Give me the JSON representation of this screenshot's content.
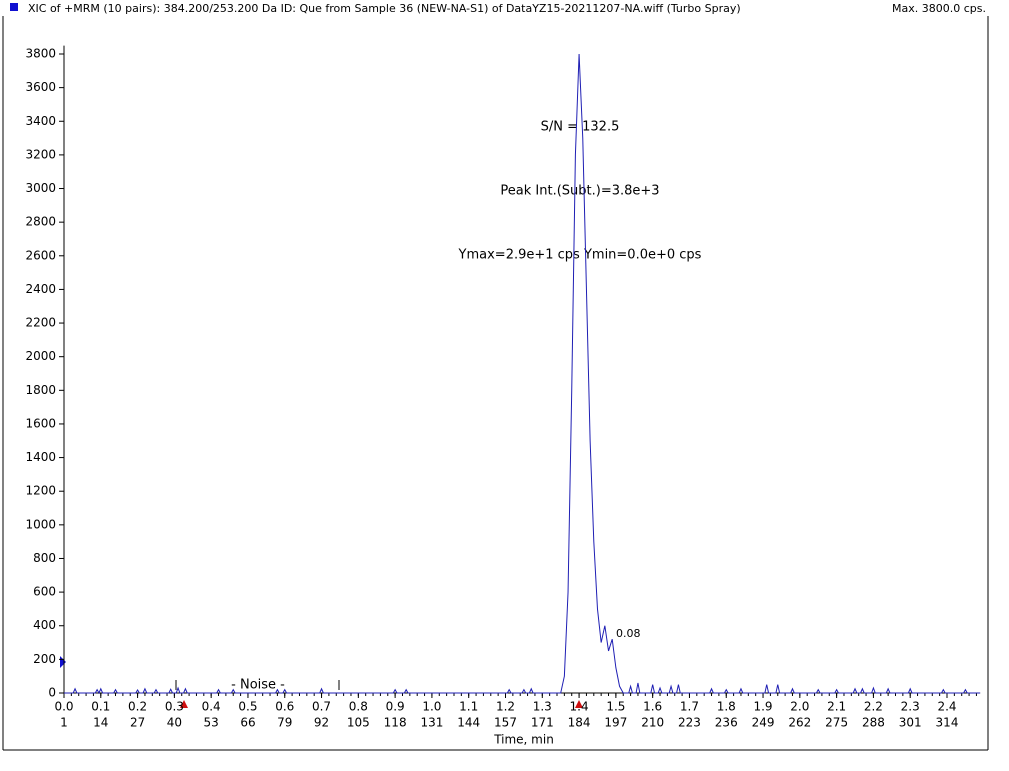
{
  "chart_data": {
    "type": "line",
    "title": "XIC of +MRM (10 pairs): 384.200/253.200 Da ID: Que from Sample 36 (NEW-NA-S1) of DataYZ15-20211207-NA.wiff (Turbo Spray)",
    "max_label": "Max. 3800.0 cps.",
    "x_label": "Time, min",
    "annotations": [
      "S/N = 132.5",
      "Peak Int.(Subt.)=3.8e+3",
      "Ymax=2.9e+1 cps  Ymin=0.0e+0 cps",
      "- Noise -",
      "0.08"
    ],
    "xlim": [
      0,
      2.49
    ],
    "ylim": [
      0,
      3850
    ],
    "xticks": [
      {
        "value": 0,
        "label": "0.0"
      },
      0.1,
      0.2,
      0.3,
      0.4,
      0.5,
      0.6,
      0.7,
      0.8,
      0.9,
      {
        "value": 1,
        "label": "1.0"
      },
      1.1,
      1.2,
      1.3,
      1.4,
      1.5,
      1.6,
      1.7,
      1.8,
      1.9,
      {
        "value": 2,
        "label": "2.0"
      },
      2.1,
      2.2,
      2.3,
      2.4
    ],
    "scan_labels": [
      1,
      14,
      27,
      40,
      53,
      66,
      79,
      92,
      105,
      118,
      131,
      144,
      157,
      171,
      184,
      197,
      210,
      223,
      236,
      249,
      262,
      275,
      288,
      301,
      314
    ],
    "yticks": [
      0,
      200,
      400,
      600,
      800,
      1000,
      1200,
      1400,
      1600,
      1800,
      2000,
      2200,
      2400,
      2600,
      2800,
      3000,
      3200,
      3400,
      3600,
      3800
    ],
    "series": [
      {
        "color": "#1f1fb4",
        "x": [
          0,
          0.025,
          0.03,
          0.035,
          0.085,
          0.09,
          0.095,
          0.1,
          0.105,
          0.135,
          0.14,
          0.145,
          0.195,
          0.2,
          0.205,
          0.215,
          0.22,
          0.225,
          0.245,
          0.25,
          0.255,
          0.285,
          0.29,
          0.295,
          0.305,
          0.31,
          0.315,
          0.325,
          0.33,
          0.335,
          0.415,
          0.42,
          0.425,
          0.455,
          0.46,
          0.465,
          0.575,
          0.58,
          0.585,
          0.595,
          0.6,
          0.605,
          0.695,
          0.7,
          0.705,
          0.895,
          0.9,
          0.905,
          0.925,
          0.93,
          0.935,
          1.205,
          1.21,
          1.215,
          1.245,
          1.25,
          1.255,
          1.265,
          1.27,
          1.275,
          1.35,
          1.36,
          1.37,
          1.38,
          1.39,
          1.4,
          1.41,
          1.42,
          1.43,
          1.44,
          1.45,
          1.46,
          1.47,
          1.48,
          1.49,
          1.5,
          1.51,
          1.52,
          1.535,
          1.54,
          1.545,
          1.555,
          1.56,
          1.565,
          1.595,
          1.6,
          1.605,
          1.615,
          1.62,
          1.625,
          1.645,
          1.65,
          1.655,
          1.665,
          1.67,
          1.675,
          1.755,
          1.76,
          1.765,
          1.795,
          1.8,
          1.805,
          1.835,
          1.84,
          1.845,
          1.905,
          1.91,
          1.915,
          1.935,
          1.94,
          1.945,
          1.975,
          1.98,
          1.985,
          2.045,
          2.05,
          2.055,
          2.095,
          2.1,
          2.105,
          2.145,
          2.15,
          2.155,
          2.165,
          2.17,
          2.175,
          2.195,
          2.2,
          2.205,
          2.235,
          2.24,
          2.245,
          2.295,
          2.3,
          2.305,
          2.385,
          2.39,
          2.395,
          2.445,
          2.45,
          2.455,
          2.49
        ],
        "values": [
          0,
          0,
          25,
          0,
          0,
          20,
          0,
          25,
          0,
          0,
          20,
          0,
          0,
          18,
          0,
          0,
          25,
          0,
          0,
          20,
          0,
          0,
          22,
          0,
          0,
          30,
          0,
          0,
          25,
          0,
          0,
          20,
          0,
          0,
          20,
          0,
          0,
          20,
          0,
          0,
          20,
          0,
          0,
          25,
          0,
          0,
          20,
          0,
          0,
          20,
          0,
          0,
          20,
          0,
          0,
          20,
          0,
          0,
          25,
          0,
          0,
          100,
          600,
          1800,
          3200,
          3800,
          3300,
          2400,
          1500,
          900,
          500,
          300,
          400,
          250,
          320,
          150,
          40,
          0,
          0,
          40,
          0,
          0,
          60,
          0,
          0,
          50,
          0,
          0,
          30,
          0,
          0,
          40,
          0,
          0,
          50,
          0,
          0,
          25,
          0,
          0,
          20,
          0,
          0,
          25,
          0,
          0,
          50,
          0,
          0,
          50,
          0,
          0,
          25,
          0,
          0,
          20,
          0,
          0,
          20,
          0,
          0,
          25,
          0,
          0,
          25,
          0,
          0,
          30,
          0,
          0,
          25,
          0,
          0,
          25,
          0,
          0,
          20,
          0,
          0,
          20,
          0,
          0
        ]
      }
    ]
  }
}
